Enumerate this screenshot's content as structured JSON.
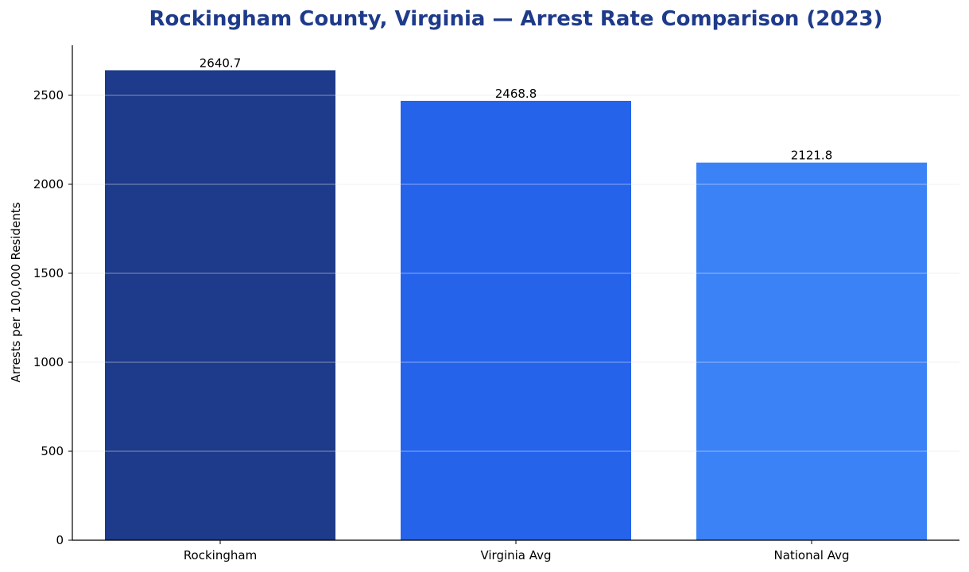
{
  "chart_data": {
    "type": "bar",
    "title": "Rockingham County, Virginia — Arrest Rate Comparison (2023)",
    "xlabel": "",
    "ylabel": "Arrests per 100,000 Residents",
    "categories": [
      "Rockingham",
      "Virginia Avg",
      "National Avg"
    ],
    "values": [
      2640.7,
      2468.8,
      2121.8
    ],
    "value_labels": [
      "2640.7",
      "2468.8",
      "2121.8"
    ],
    "colors": [
      "#1e3a8a",
      "#2563eb",
      "#3b82f6"
    ],
    "ylim": [
      0,
      2781
    ],
    "yticks": [
      0,
      500,
      1000,
      1500,
      2000,
      2500
    ],
    "ytick_labels": [
      "0",
      "500",
      "1000",
      "1500",
      "2000",
      "2500"
    ],
    "grid": true,
    "grid_axis": "y",
    "title_color": "#1e3a8a",
    "grid_color": "#e5e7eb"
  }
}
